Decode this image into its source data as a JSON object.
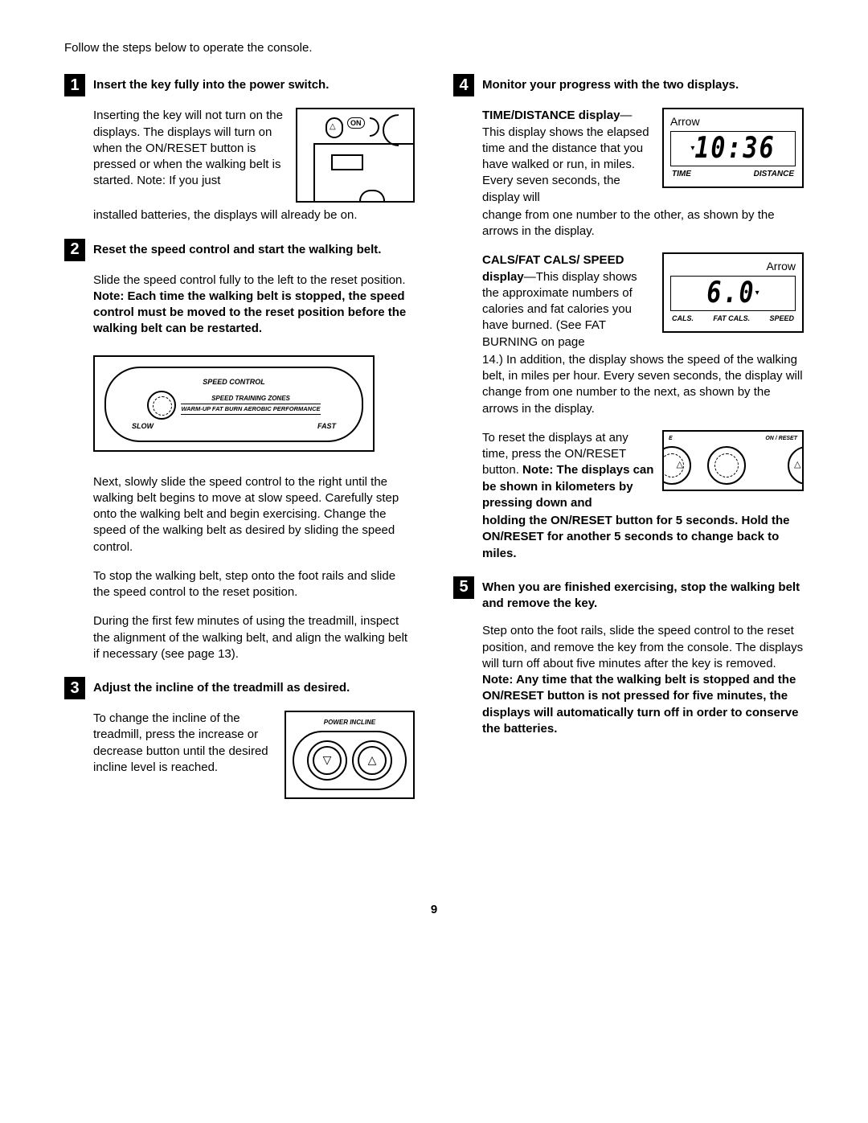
{
  "intro": "Follow the steps below to operate the console.",
  "steps": [
    {
      "num": "1",
      "title": "Insert the key fully into the power switch.",
      "p1": "Inserting the key will not turn on the dis­plays. The displays will turn on when the ON/RESET button is pressed or when the walking belt is started. Note: If you just",
      "p1b": "installed batteries, the displays will already be on."
    },
    {
      "num": "2",
      "title": "Reset the speed control and start the walking belt.",
      "p1_a": "Slide the speed control fully to the left to the reset position. ",
      "p1_b": "Note: Each time the walking belt is stopped, the speed control must be moved to the reset position before the walking belt can be restarted.",
      "p2": "Next, slowly slide the speed control to the right until the walking belt begins to move at slow speed. Carefully step onto the walking belt and begin exercising. Change the speed of the walking belt as desired by sliding the speed control.",
      "p3": "To stop the walking belt, step onto the foot rails and slide the speed control to the reset position.",
      "p4": "During the first few minutes of using the treadmill, inspect the alignment of the walking belt, and align the walking belt if necessary (see page 13)."
    },
    {
      "num": "3",
      "title": "Adjust the incline of the treadmill as desired.",
      "p1": "To change the in­cline of the treadmill, press the increase or decrease button until the desired in­cline level is reached."
    },
    {
      "num": "4",
      "title": "Monitor your progress with the two displays.",
      "time_head": "TIME/DISTANCE dis­play",
      "time_body_a": "—This display shows the elapsed time and the distance that you have walked or run, in miles. Every seven seconds, the display will",
      "time_body_b": "change from one number to the other, as shown by the arrows in the display.",
      "cals_head": "CALS/FAT CALS/ SPEED display",
      "cals_body_a": "—This display shows the ap­proximate numbers of calories and fat calories you have burned. (See FAT BURNING on page",
      "cals_body_b": "14.) In addition, the display shows the speed of the walking belt, in miles per hour. Every seven seconds, the display will change from one number to the next, as shown by the arrows in the display.",
      "reset_a": "To reset the displays at any time, press the ON/RESET button.",
      "reset_b": "Note: The displays can be shown in kilometers by pressing down and",
      "reset_c": "holding the ON/RESET button for 5 seconds. Hold the ON/RESET for another 5 seconds to change back to miles."
    },
    {
      "num": "5",
      "title": "When you are finished exercising, stop the walking belt and remove the key.",
      "p1_a": "Step onto the foot rails, slide the speed control to the reset position, and remove the key from the console. The displays will turn off about five min­utes after the key is removed. ",
      "p1_b": "Note: Any time that the walking belt is stopped and the ON/RESET button is not pressed for five min­utes, the displays will automatically turn off in order to conserve the batteries."
    }
  ],
  "fig": {
    "on_label": "ON",
    "speed_control": "SPEED CONTROL",
    "speed_zones": "SPEED TRAINING ZONES",
    "speed_modes": "WARM-UP FAT BURN  AEROBIC PERFORMANCE",
    "slow": "SLOW",
    "fast": "FAST",
    "power_incline": "POWER INCLINE",
    "arrow": "Arrow",
    "disp1_value": "10:36",
    "disp1_left": "TIME",
    "disp1_right": "DISTANCE",
    "disp2_value": "6.0",
    "disp2_a": "CALS.",
    "disp2_b": "FAT CALS.",
    "disp2_c": "SPEED",
    "reset_e": "E",
    "reset_on": "ON / RESET"
  },
  "page_number": "9"
}
